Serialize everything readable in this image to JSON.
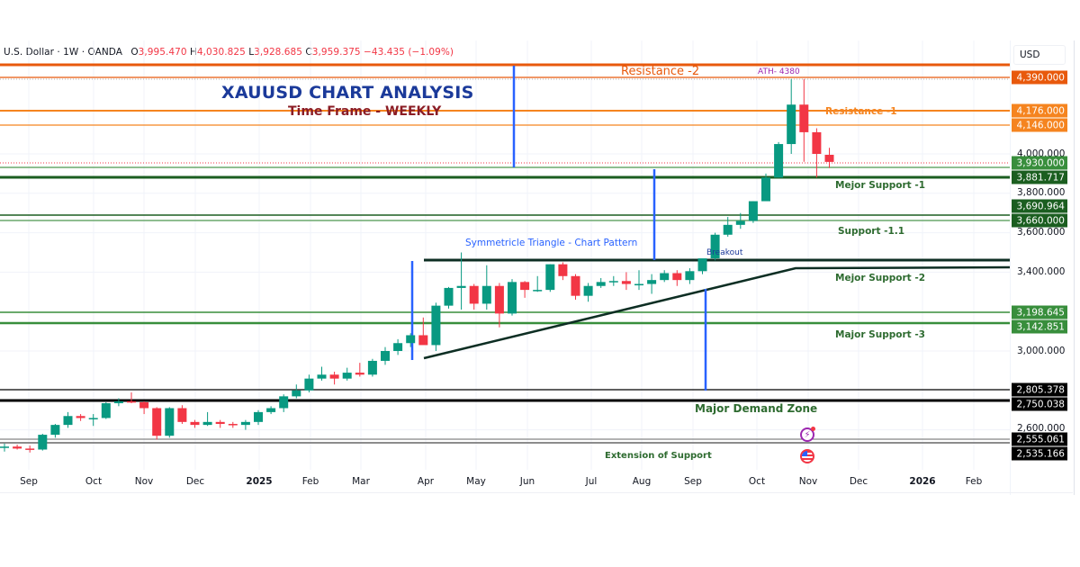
{
  "header": {
    "symbol": "U.S. Dollar · 1W · OANDA",
    "open_label": "O",
    "open": "3,995.470",
    "high_label": "H",
    "high": "4,030.825",
    "low_label": "L",
    "low": "3,928.685",
    "close_label": "C",
    "close": "3,959.375",
    "change": "−43.435 (−1.09%)"
  },
  "price_axis": {
    "currency": "USD",
    "ticks": [
      "4,000.000",
      "3,800.000",
      "3,600.000",
      "3,400.000",
      "3,000.000",
      "2,600.000"
    ],
    "badges": [
      {
        "value": "4,390.000",
        "color": "#e8590c"
      },
      {
        "value": "4,176.000",
        "color": "#f5841f"
      },
      {
        "value": "4,146.000",
        "color": "#f5841f"
      },
      {
        "value": "3,930.000",
        "color": "#388e3c"
      },
      {
        "value": "3,881.717",
        "color": "#1b5e20"
      },
      {
        "value": "3,690.964",
        "color": "#1b5e20"
      },
      {
        "value": "3,660.000",
        "color": "#1b5e20"
      },
      {
        "value": "3,198.645",
        "color": "#388e3c"
      },
      {
        "value": "3,142.851",
        "color": "#388e3c"
      },
      {
        "value": "2,805.378",
        "color": "#000000"
      },
      {
        "value": "2,750.038",
        "color": "#000000"
      },
      {
        "value": "2,555.061",
        "color": "#000000"
      },
      {
        "value": "2,535.166",
        "color": "#000000"
      }
    ]
  },
  "time_axis": {
    "labels": [
      "Sep",
      "Oct",
      "Nov",
      "Dec",
      "2025",
      "Feb",
      "Mar",
      "Apr",
      "May",
      "Jun",
      "Jul",
      "Aug",
      "Sep",
      "Oct",
      "Nov",
      "Dec",
      "2026",
      "Feb"
    ]
  },
  "annotations": {
    "title": "XAUUSD CHART ANALYSIS",
    "subtitle": "Time Frame - WEEKLY",
    "resistance_2": "Resistance -2",
    "ath": "ATH- 4380",
    "resistance_1": "Resistance -1",
    "major_support_1": "Mejor Support -1",
    "support_1_1": "Support -1.1",
    "triangle": "Symmetricle Triangle - Chart Pattern",
    "breakout": "Breakout",
    "major_support_2": "Mejor Support -2",
    "major_support_3": "Major Support -3",
    "demand_zone": "Major Demand Zone",
    "extension": "Extension of Support"
  },
  "colors": {
    "up": "#089981",
    "down": "#f23645",
    "resistance_strong": "#e8590c",
    "resistance": "#f5841f",
    "support_dark": "#1b5e20",
    "support": "#388e3c",
    "demand": "#000000",
    "marker_blue": "#2962ff",
    "title_blue": "#1b3a9a",
    "subtitle_red": "#8b1c24"
  },
  "chart_data": {
    "type": "candlestick",
    "title": "XAUUSD CHART ANALYSIS",
    "subtitle": "Time Frame - WEEKLY",
    "symbol": "U.S. Dollar · 1W · OANDA",
    "xlabel": "",
    "ylabel": "USD",
    "ylim": [
      2460,
      4470
    ],
    "x_ticks": [
      "Sep",
      "Oct",
      "Nov",
      "Dec",
      "2025",
      "Feb",
      "Mar",
      "Apr",
      "May",
      "Jun",
      "Jul",
      "Aug",
      "Sep",
      "Oct",
      "Nov",
      "Dec",
      "2026",
      "Feb"
    ],
    "y_ticks": [
      2600,
      3000,
      3400,
      3600,
      3800,
      4000
    ],
    "last_bar": {
      "open": 3995.47,
      "high": 4030.825,
      "low": 3928.685,
      "close": 3959.375,
      "change": -43.435,
      "change_pct": -1.09
    },
    "candles": [
      [
        2510,
        2530,
        2490,
        2515
      ],
      [
        2515,
        2525,
        2500,
        2505
      ],
      [
        2505,
        2520,
        2485,
        2500
      ],
      [
        2500,
        2580,
        2495,
        2575
      ],
      [
        2575,
        2630,
        2560,
        2625
      ],
      [
        2625,
        2690,
        2610,
        2670
      ],
      [
        2670,
        2680,
        2645,
        2660
      ],
      [
        2660,
        2680,
        2620,
        2660
      ],
      [
        2660,
        2740,
        2655,
        2735
      ],
      [
        2735,
        2760,
        2720,
        2745
      ],
      [
        2745,
        2790,
        2735,
        2740
      ],
      [
        2740,
        2745,
        2680,
        2710
      ],
      [
        2710,
        2715,
        2550,
        2570
      ],
      [
        2570,
        2715,
        2560,
        2710
      ],
      [
        2710,
        2725,
        2630,
        2640
      ],
      [
        2640,
        2650,
        2610,
        2625
      ],
      [
        2625,
        2690,
        2620,
        2640
      ],
      [
        2640,
        2650,
        2610,
        2630
      ],
      [
        2630,
        2640,
        2610,
        2625
      ],
      [
        2625,
        2650,
        2600,
        2640
      ],
      [
        2640,
        2700,
        2625,
        2690
      ],
      [
        2690,
        2720,
        2680,
        2710
      ],
      [
        2710,
        2780,
        2690,
        2770
      ],
      [
        2770,
        2830,
        2760,
        2800
      ],
      [
        2800,
        2880,
        2790,
        2860
      ],
      [
        2860,
        2920,
        2850,
        2880
      ],
      [
        2880,
        2895,
        2830,
        2860
      ],
      [
        2860,
        2915,
        2850,
        2890
      ],
      [
        2890,
        2940,
        2870,
        2880
      ],
      [
        2880,
        2960,
        2870,
        2950
      ],
      [
        2950,
        3020,
        2930,
        3000
      ],
      [
        3000,
        3060,
        2980,
        3040
      ],
      [
        3040,
        3090,
        3020,
        3080
      ],
      [
        3080,
        3170,
        3060,
        3030
      ],
      [
        3030,
        3245,
        3000,
        3230
      ],
      [
        3230,
        3325,
        3215,
        3320
      ],
      [
        3320,
        3500,
        3210,
        3330
      ],
      [
        3330,
        3340,
        3210,
        3240
      ],
      [
        3240,
        3435,
        3210,
        3330
      ],
      [
        3330,
        3345,
        3120,
        3190
      ],
      [
        3190,
        3365,
        3180,
        3350
      ],
      [
        3350,
        3355,
        3270,
        3310
      ],
      [
        3310,
        3380,
        3300,
        3310
      ],
      [
        3310,
        3440,
        3300,
        3440
      ],
      [
        3440,
        3450,
        3360,
        3380
      ],
      [
        3380,
        3390,
        3260,
        3280
      ],
      [
        3280,
        3345,
        3250,
        3330
      ],
      [
        3330,
        3370,
        3320,
        3350
      ],
      [
        3350,
        3380,
        3330,
        3355
      ],
      [
        3355,
        3400,
        3310,
        3340
      ],
      [
        3340,
        3410,
        3310,
        3340
      ],
      [
        3340,
        3390,
        3290,
        3360
      ],
      [
        3360,
        3410,
        3350,
        3395
      ],
      [
        3395,
        3410,
        3330,
        3360
      ],
      [
        3360,
        3420,
        3340,
        3405
      ],
      [
        3405,
        3460,
        3390,
        3470
      ],
      [
        3470,
        3600,
        3460,
        3590
      ],
      [
        3590,
        3680,
        3580,
        3640
      ],
      [
        3640,
        3700,
        3620,
        3660
      ],
      [
        3660,
        3760,
        3650,
        3760
      ],
      [
        3760,
        3900,
        3760,
        3880
      ],
      [
        3880,
        4060,
        3880,
        4050
      ],
      [
        4050,
        4380,
        4000,
        4250
      ],
      [
        4250,
        4380,
        3960,
        4110
      ],
      [
        4110,
        4130,
        3880,
        4000
      ],
      [
        3995.47,
        4030.825,
        3928.685,
        3959.375
      ]
    ],
    "horizontal_levels": [
      {
        "label": "Resistance -2",
        "value": 4390.0
      },
      {
        "label": "Resistance -1",
        "value": 4176.0
      },
      {
        "label": "Resistance -1",
        "value": 4146.0
      },
      {
        "label": "",
        "value": 3930.0
      },
      {
        "label": "Mejor Support -1",
        "value": 3881.717
      },
      {
        "label": "Support -1.1",
        "value": 3690.964
      },
      {
        "label": "Support -1.1",
        "value": 3660.0
      },
      {
        "label": "Mejor Support -2",
        "value": 3450
      },
      {
        "label": "Major Support -3",
        "value": 3198.645
      },
      {
        "label": "Major Support -3",
        "value": 3142.851
      },
      {
        "label": "Major Demand Zone",
        "value": 2805.378
      },
      {
        "label": "Major Demand Zone",
        "value": 2750.038
      },
      {
        "label": "Extension of Support",
        "value": 2555.061
      },
      {
        "label": "Extension of Support",
        "value": 2535.166
      }
    ],
    "annotations": [
      "ATH- 4380",
      "Symmetricle Triangle - Chart Pattern",
      "Breakout"
    ],
    "grid": true
  }
}
